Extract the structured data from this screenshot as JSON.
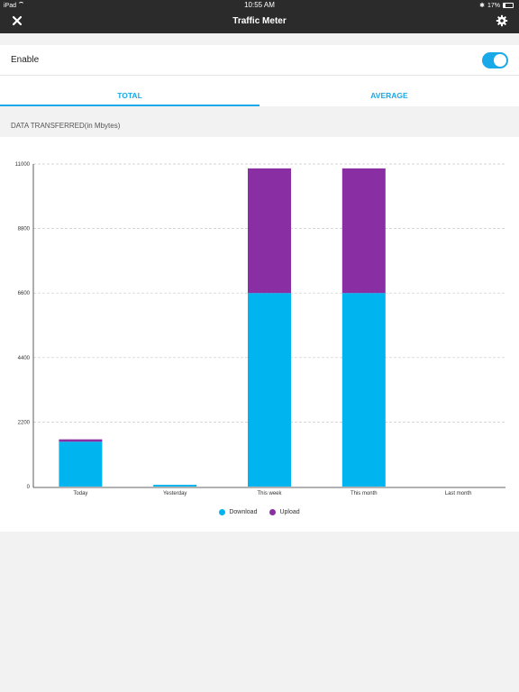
{
  "status_bar": {
    "device": "iPad",
    "time": "10:55 AM",
    "battery": "17%"
  },
  "nav": {
    "title": "Traffic Meter",
    "close_icon": "close-icon",
    "settings_icon": "gear-icon"
  },
  "enable": {
    "label": "Enable",
    "on": true
  },
  "tabs": [
    {
      "label": "TOTAL",
      "active": true
    },
    {
      "label": "AVERAGE",
      "active": false
    }
  ],
  "section_label": "DATA TRANSFERRED(in Mbytes)",
  "colors": {
    "download": "#00b4f0",
    "upload": "#8a2ea3",
    "accent": "#1aa9e8",
    "header": "#2b2b2b"
  },
  "chart_data": {
    "type": "bar",
    "stacked": true,
    "categories": [
      "Today",
      "Yesterday",
      "This week",
      "This month",
      "Last month"
    ],
    "series": [
      {
        "name": "Download",
        "values": [
          1530,
          60,
          6600,
          6600,
          0
        ]
      },
      {
        "name": "Upload",
        "values": [
          80,
          0,
          4250,
          4250,
          0
        ]
      }
    ],
    "ylim": [
      0,
      11000
    ],
    "yticks": [
      "0",
      "2200",
      "4400",
      "6600",
      "8800",
      "11000"
    ],
    "grid": true,
    "legend": "bottom"
  }
}
